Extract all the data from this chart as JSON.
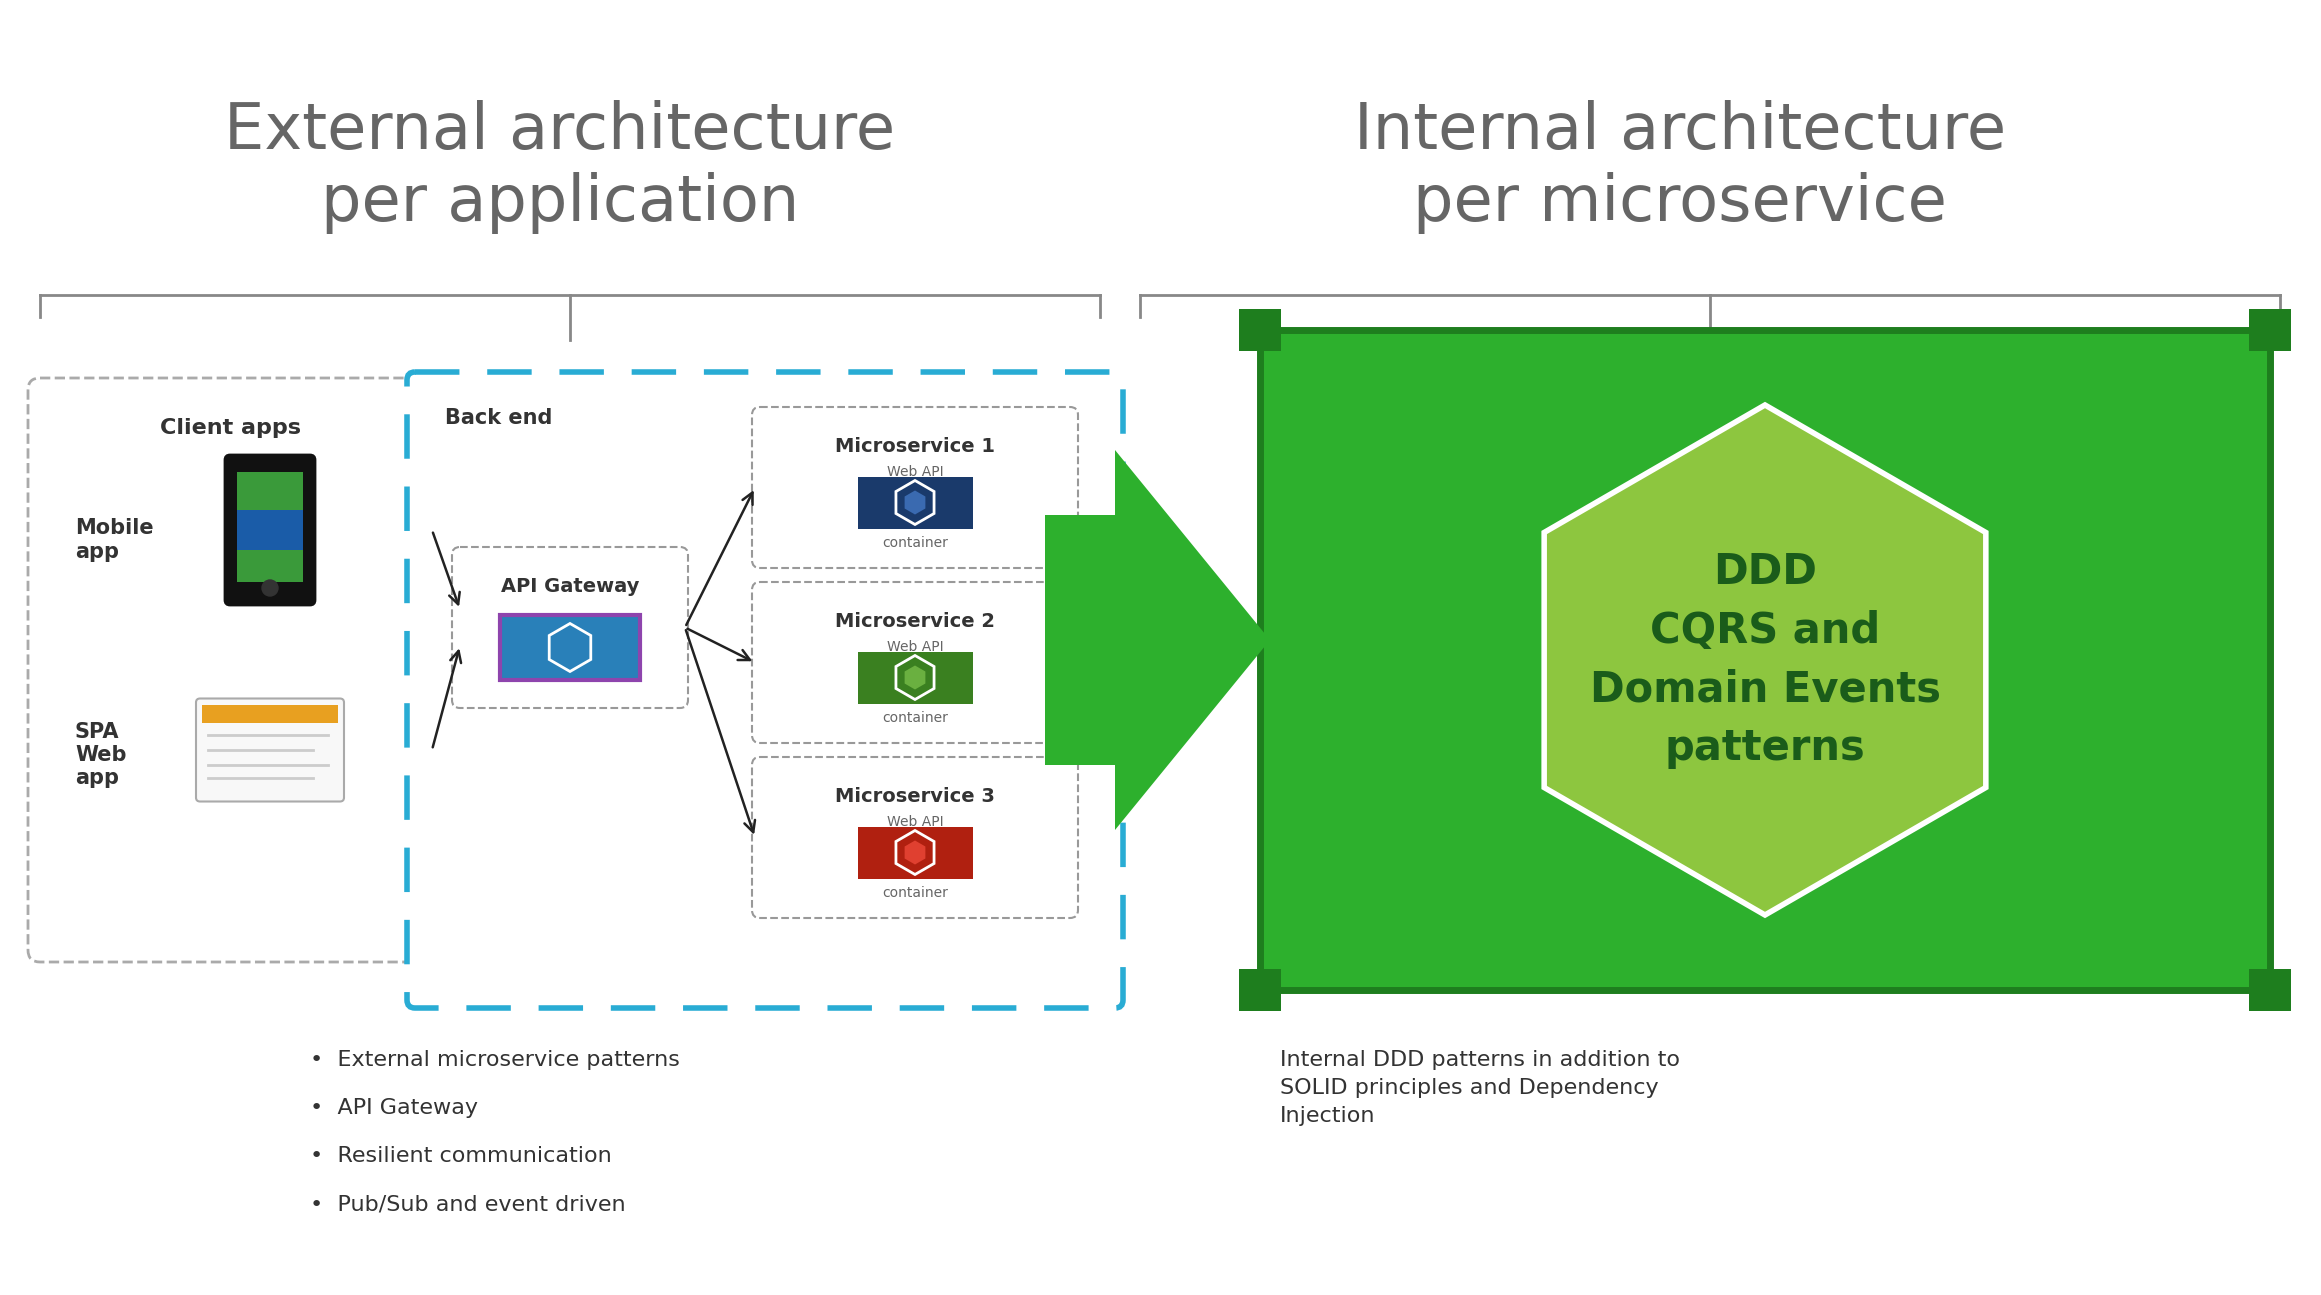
{
  "title_left": "External architecture\nper application",
  "title_right": "Internal architecture\nper microservice",
  "title_color": "#666666",
  "title_fontsize": 46,
  "bg_color": "#ffffff",
  "client_apps_label": "Client apps",
  "mobile_app_label": "Mobile\napp",
  "spa_label": "SPA\nWeb\napp",
  "backend_label": "Back end",
  "api_gateway_label": "API Gateway",
  "microservice1_label": "Microservice 1",
  "microservice2_label": "Microservice 2",
  "microservice3_label": "Microservice 3",
  "web_api_label": "Web API",
  "container_label": "container",
  "ddd_label": "DDD\nCQRS and\nDomain Events\npatterns",
  "bullet_points": [
    "External microservice patterns",
    "API Gateway",
    "Resilient communication",
    "Pub/Sub and event driven"
  ],
  "right_text": "Internal DDD patterns in addition to\nSOLID principles and Dependency\nInjection",
  "green_dark": "#1e7e1e",
  "green_rect": "#2db02d",
  "green_arrow": "#2db02d",
  "blue_dashed": "#29acd4",
  "hex_color_ms1": "#1a3a6b",
  "hex_color_ms2": "#4a8f2a",
  "hex_color_ms3": "#c0392b",
  "gw_hex_bg": "#2980b9",
  "gw_hex_border": "#8e44ad",
  "hexagon_fill": "#8dc63f",
  "hexagon_text_color": "#1a5c1a",
  "arrow_color": "#222222",
  "bracket_color": "#888888",
  "label_color": "#333333",
  "ms_border_color": "#999999"
}
